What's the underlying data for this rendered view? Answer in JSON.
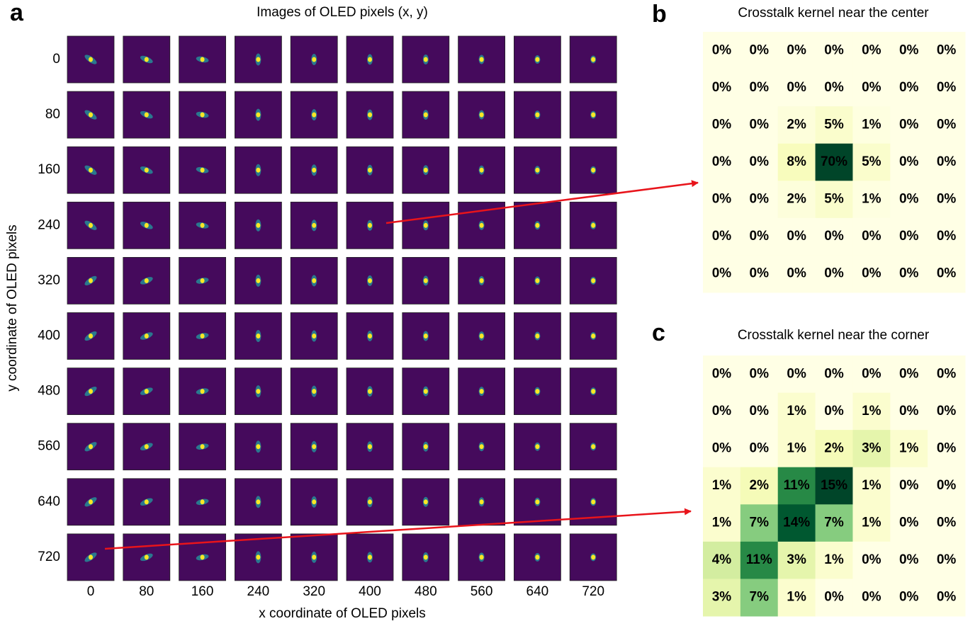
{
  "chart_data": [
    {
      "type": "image-grid",
      "panel": "a",
      "title": "Images of OLED pixels (x, y)",
      "xlabel": "x coordinate of OLED pixels",
      "ylabel": "y coordinate of OLED pixels",
      "x": [
        0,
        80,
        160,
        240,
        320,
        400,
        480,
        560,
        640,
        720
      ],
      "y": [
        0,
        80,
        160,
        240,
        320,
        400,
        480,
        560,
        640,
        720
      ]
    },
    {
      "type": "heatmap",
      "panel": "b",
      "title": "Crosstalk kernel near the center",
      "values": [
        [
          0,
          0,
          0,
          0,
          0,
          0,
          0
        ],
        [
          0,
          0,
          0,
          0,
          0,
          0,
          0
        ],
        [
          0,
          0,
          2,
          5,
          1,
          0,
          0
        ],
        [
          0,
          0,
          8,
          70,
          5,
          0,
          0
        ],
        [
          0,
          0,
          2,
          5,
          1,
          0,
          0
        ],
        [
          0,
          0,
          0,
          0,
          0,
          0,
          0
        ],
        [
          0,
          0,
          0,
          0,
          0,
          0,
          0
        ]
      ],
      "value_labels": [
        [
          "0%",
          "0%",
          "0%",
          "0%",
          "0%",
          "0%",
          "0%"
        ],
        [
          "0%",
          "0%",
          "0%",
          "0%",
          "0%",
          "0%",
          "0%"
        ],
        [
          "0%",
          "0%",
          "2%",
          "5%",
          "1%",
          "0%",
          "0%"
        ],
        [
          "0%",
          "0%",
          "8%",
          "70%",
          "5%",
          "0%",
          "0%"
        ],
        [
          "0%",
          "0%",
          "2%",
          "5%",
          "1%",
          "0%",
          "0%"
        ],
        [
          "0%",
          "0%",
          "0%",
          "0%",
          "0%",
          "0%",
          "0%"
        ],
        [
          "0%",
          "0%",
          "0%",
          "0%",
          "0%",
          "0%",
          "0%"
        ]
      ]
    },
    {
      "type": "heatmap",
      "panel": "c",
      "title": "Crosstalk kernel near the corner",
      "values": [
        [
          0,
          0,
          0,
          0,
          0,
          0,
          0
        ],
        [
          0,
          0,
          1,
          0,
          1,
          0,
          0
        ],
        [
          0,
          0,
          1,
          2,
          3,
          1,
          0
        ],
        [
          1,
          2,
          11,
          15,
          1,
          0,
          0
        ],
        [
          1,
          7,
          14,
          7,
          1,
          0,
          0
        ],
        [
          4,
          11,
          3,
          1,
          0,
          0,
          0
        ],
        [
          3,
          7,
          1,
          0,
          0,
          0,
          0
        ]
      ],
      "value_labels": [
        [
          "0%",
          "0%",
          "0%",
          "0%",
          "0%",
          "0%",
          "0%"
        ],
        [
          "0%",
          "0%",
          "1%",
          "0%",
          "1%",
          "0%",
          "0%"
        ],
        [
          "0%",
          "0%",
          "1%",
          "2%",
          "3%",
          "1%",
          "0%"
        ],
        [
          "1%",
          "2%",
          "11%",
          "15%",
          "1%",
          "0%",
          "0%"
        ],
        [
          "1%",
          "7%",
          "14%",
          "7%",
          "1%",
          "0%",
          "0%"
        ],
        [
          "4%",
          "11%",
          "3%",
          "1%",
          "0%",
          "0%",
          "0%"
        ],
        [
          "3%",
          "7%",
          "1%",
          "0%",
          "0%",
          "0%",
          "0%"
        ]
      ]
    }
  ]
}
